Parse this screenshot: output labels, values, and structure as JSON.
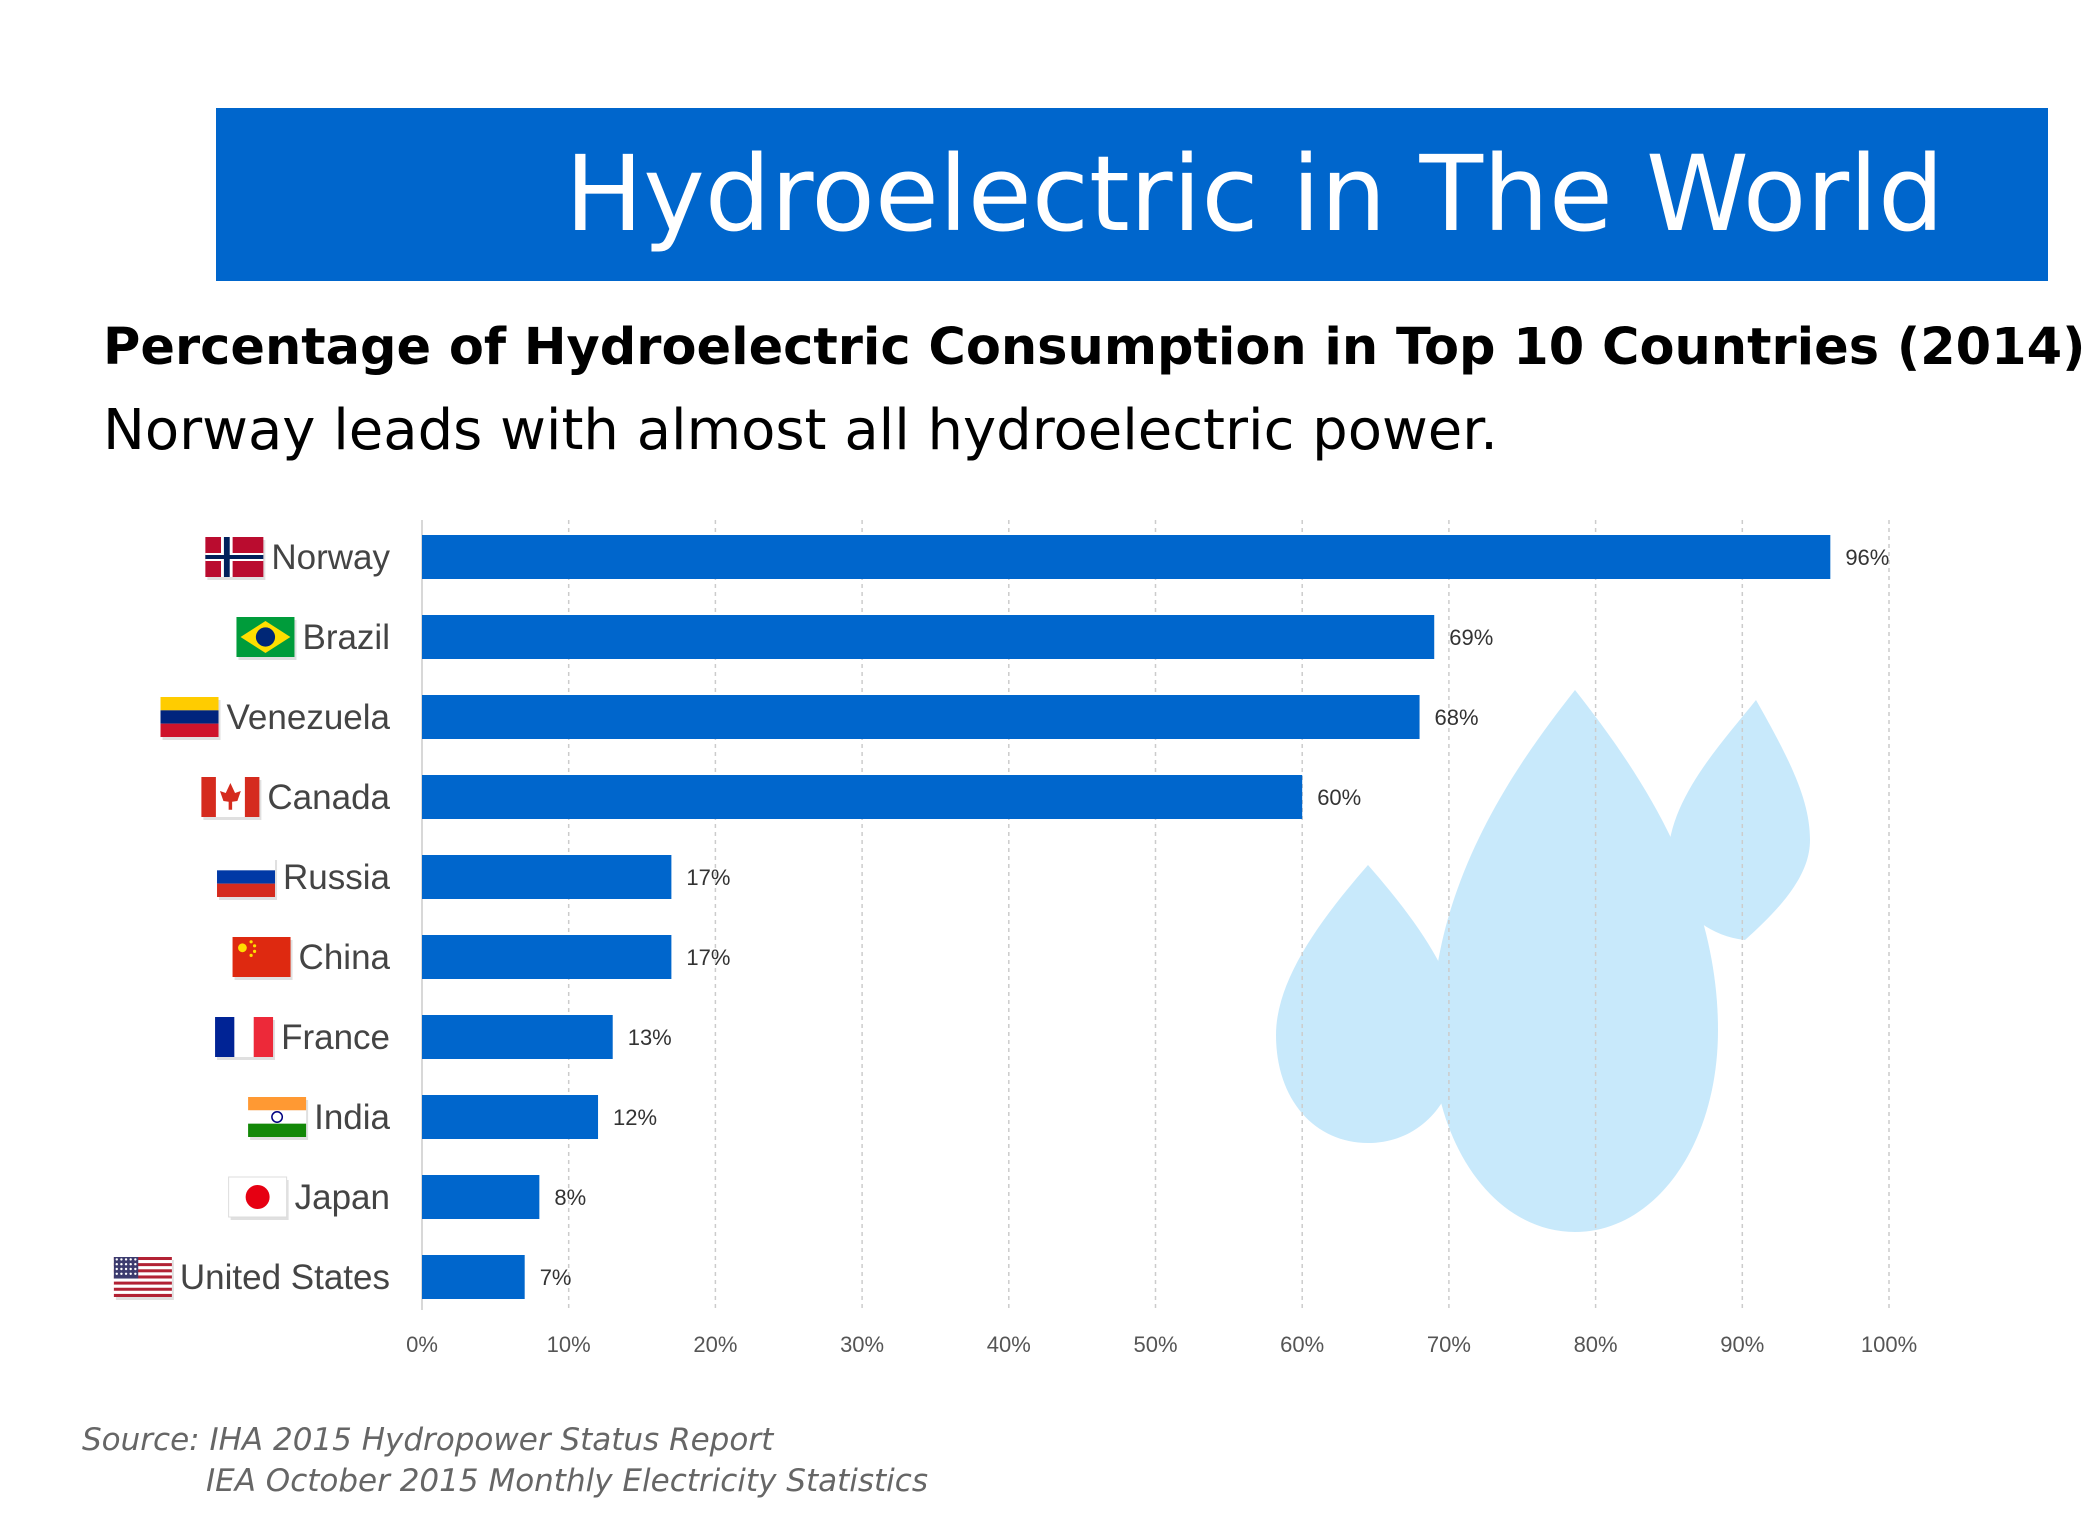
{
  "slide": {
    "title": "Hydroelectric in The World",
    "heading": "Percentage of Hydroelectric Consumption in Top 10 Countries (2014)",
    "subheading": "Norway leads with almost all hydroelectric power.",
    "source_line1": "Source: IHA 2015 Hydropower Status Report",
    "source_line2": "IEA October 2015 Monthly Electricity Statistics"
  },
  "colors": {
    "banner": "#0066cc",
    "bar": "#0066cc",
    "water_drop": "#c8e9fb",
    "grid": "#cccccc",
    "tick_text": "#555555",
    "label_text": "#444444"
  },
  "icons": {
    "flags": [
      "norway-flag-icon",
      "brazil-flag-icon",
      "venezuela-flag-icon",
      "canada-flag-icon",
      "russia-flag-icon",
      "china-flag-icon",
      "france-flag-icon",
      "india-flag-icon",
      "japan-flag-icon",
      "united-states-flag-icon"
    ],
    "decoration": "water-drops-icon"
  },
  "chart_data": {
    "type": "bar",
    "orientation": "horizontal",
    "title": "",
    "xlabel": "",
    "ylabel": "",
    "categories": [
      "Norway",
      "Brazil",
      "Venezuela",
      "Canada",
      "Russia",
      "China",
      "France",
      "India",
      "Japan",
      "United States"
    ],
    "values": [
      96,
      69,
      68,
      60,
      17,
      17,
      13,
      12,
      8,
      7
    ],
    "value_labels": [
      "96%",
      "69%",
      "68%",
      "60%",
      "17%",
      "17%",
      "13%",
      "12%",
      "8%",
      "7%"
    ],
    "xlim": [
      0,
      100
    ],
    "xticks": [
      0,
      10,
      20,
      30,
      40,
      50,
      60,
      70,
      80,
      90,
      100
    ],
    "xtick_labels": [
      "0%",
      "10%",
      "20%",
      "30%",
      "40%",
      "50%",
      "60%",
      "70%",
      "80%",
      "90%",
      "100%"
    ],
    "grid": "vertical-dashed",
    "legend": "none"
  }
}
